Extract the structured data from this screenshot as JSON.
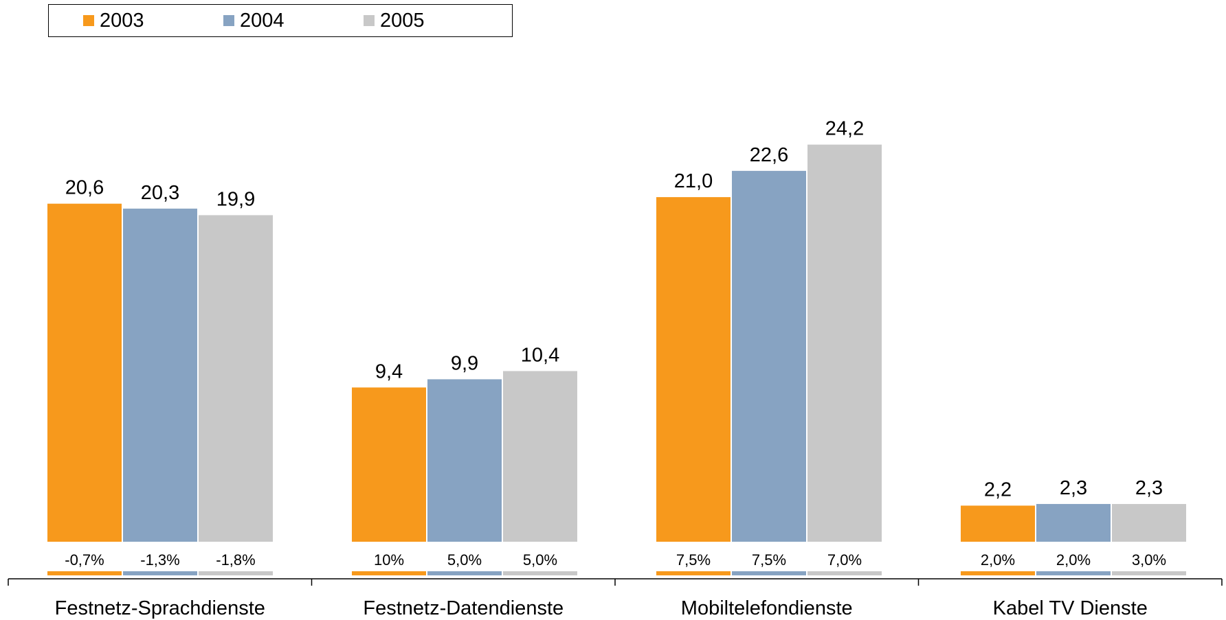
{
  "chart_data": {
    "type": "bar",
    "categories": [
      "Festnetz-Sprachdienste",
      "Festnetz-Datendienste",
      "Mobiltelefondienste",
      "Kabel TV Dienste"
    ],
    "series": [
      {
        "name": "2003",
        "color": "#f7991c",
        "values": [
          20.6,
          9.4,
          21.0,
          2.2
        ],
        "value_labels": [
          "20,6",
          "9,4",
          "21,0",
          "2,2"
        ],
        "growth_labels": [
          "-0,7%",
          "10%",
          "7,5%",
          "2,0%"
        ]
      },
      {
        "name": "2004",
        "color": "#87a3c2",
        "values": [
          20.3,
          9.9,
          22.6,
          2.3
        ],
        "value_labels": [
          "20,3",
          "9,9",
          "22,6",
          "2,3"
        ],
        "growth_labels": [
          "-1,3%",
          "5,0%",
          "7,5%",
          "2,0%"
        ]
      },
      {
        "name": "2005",
        "color": "#c8c8c8",
        "values": [
          19.9,
          10.4,
          24.2,
          2.3
        ],
        "value_labels": [
          "19,9",
          "10,4",
          "24,2",
          "2,3"
        ],
        "growth_labels": [
          "-1,8%",
          "5,0%",
          "7,0%",
          "3,0%"
        ]
      }
    ],
    "title": "",
    "xlabel": "",
    "ylabel": "",
    "ylim": [
      0,
      26
    ],
    "grid": false,
    "legend": "top-left"
  }
}
